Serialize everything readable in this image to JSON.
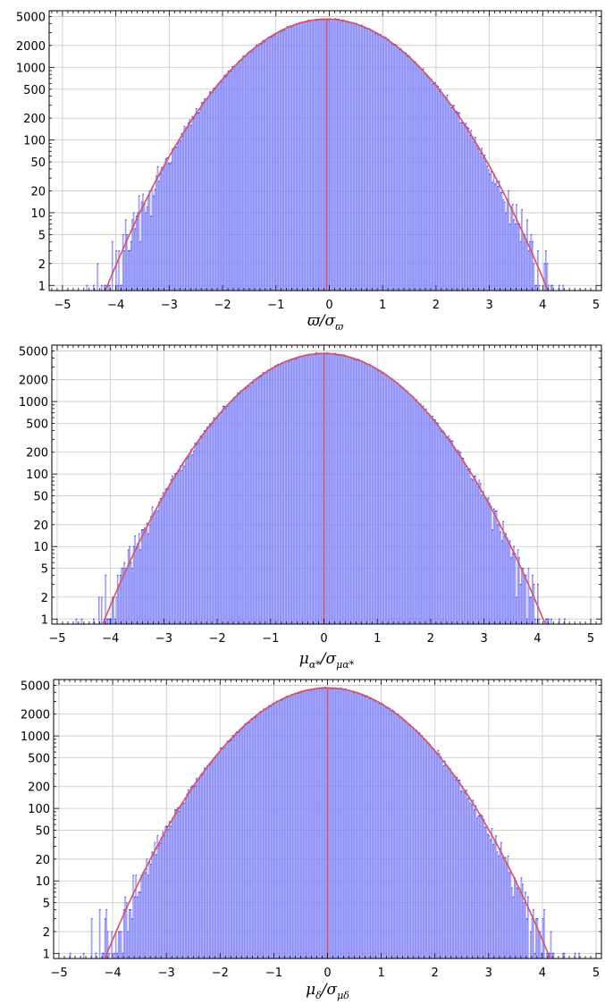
{
  "chart_data": [
    {
      "type": "bar",
      "subtype": "histogram",
      "y_scale": "log",
      "xlim": [
        -5.25,
        5.1
      ],
      "ylim": [
        0.85,
        6000
      ],
      "x_ticks": [
        -5,
        -4,
        -3,
        -2,
        -1,
        0,
        1,
        2,
        3,
        4,
        5
      ],
      "y_ticks": [
        1,
        2,
        5,
        10,
        20,
        50,
        100,
        200,
        500,
        1000,
        2000,
        5000
      ],
      "xlabel": {
        "main": "ϖ/σ",
        "sub": "ϖ"
      },
      "grid": true,
      "histogram": {
        "range": [
          -5,
          5
        ],
        "bin_width": 0.025,
        "peak_count": 4600,
        "center": -0.05,
        "sigma": 1.0,
        "color": "#4040ff"
      },
      "fit_curve": {
        "name": "",
        "shape": "gaussian",
        "peak": 4600,
        "center": -0.05,
        "sigma": 1.0,
        "color": "#e0505a"
      },
      "center_line_x": -0.05
    },
    {
      "type": "bar",
      "subtype": "histogram",
      "y_scale": "log",
      "xlim": [
        -5.1,
        5.2
      ],
      "ylim": [
        0.85,
        6000
      ],
      "x_ticks": [
        -5,
        -4,
        -3,
        -2,
        -1,
        0,
        1,
        2,
        3,
        4,
        5
      ],
      "y_ticks": [
        1,
        2,
        5,
        10,
        20,
        50,
        100,
        200,
        500,
        1000,
        2000,
        5000
      ],
      "xlabel": {
        "main": "μ",
        "sub": "α*",
        "main2": "/σ",
        "sub2": "μα*"
      },
      "grid": true,
      "histogram": {
        "range": [
          -5,
          5
        ],
        "bin_width": 0.025,
        "peak_count": 4600,
        "center": 0.0,
        "sigma": 1.0,
        "color": "#4040ff"
      },
      "fit_curve": {
        "name": "",
        "shape": "gaussian",
        "peak": 4600,
        "center": 0.0,
        "sigma": 1.0,
        "color": "#e0505a"
      },
      "center_line_x": 0.0
    },
    {
      "type": "bar",
      "subtype": "histogram",
      "y_scale": "log",
      "xlim": [
        -5.1,
        5.1
      ],
      "ylim": [
        0.85,
        6000
      ],
      "x_ticks": [
        -5,
        -4,
        -3,
        -2,
        -1,
        0,
        1,
        2,
        3,
        4,
        5
      ],
      "y_ticks": [
        1,
        2,
        5,
        10,
        20,
        50,
        100,
        200,
        500,
        1000,
        2000,
        5000
      ],
      "xlabel": {
        "main": "μ",
        "sub": "δ",
        "main2": "/σ",
        "sub2": "μδ"
      },
      "grid": true,
      "histogram": {
        "range": [
          -5,
          5
        ],
        "bin_width": 0.025,
        "peak_count": 4600,
        "center": 0.0,
        "sigma": 1.0,
        "color": "#4040ff"
      },
      "fit_curve": {
        "name": "",
        "shape": "gaussian",
        "peak": 4600,
        "center": 0.0,
        "sigma": 1.0,
        "color": "#e0505a"
      },
      "center_line_x": 0.0
    }
  ]
}
